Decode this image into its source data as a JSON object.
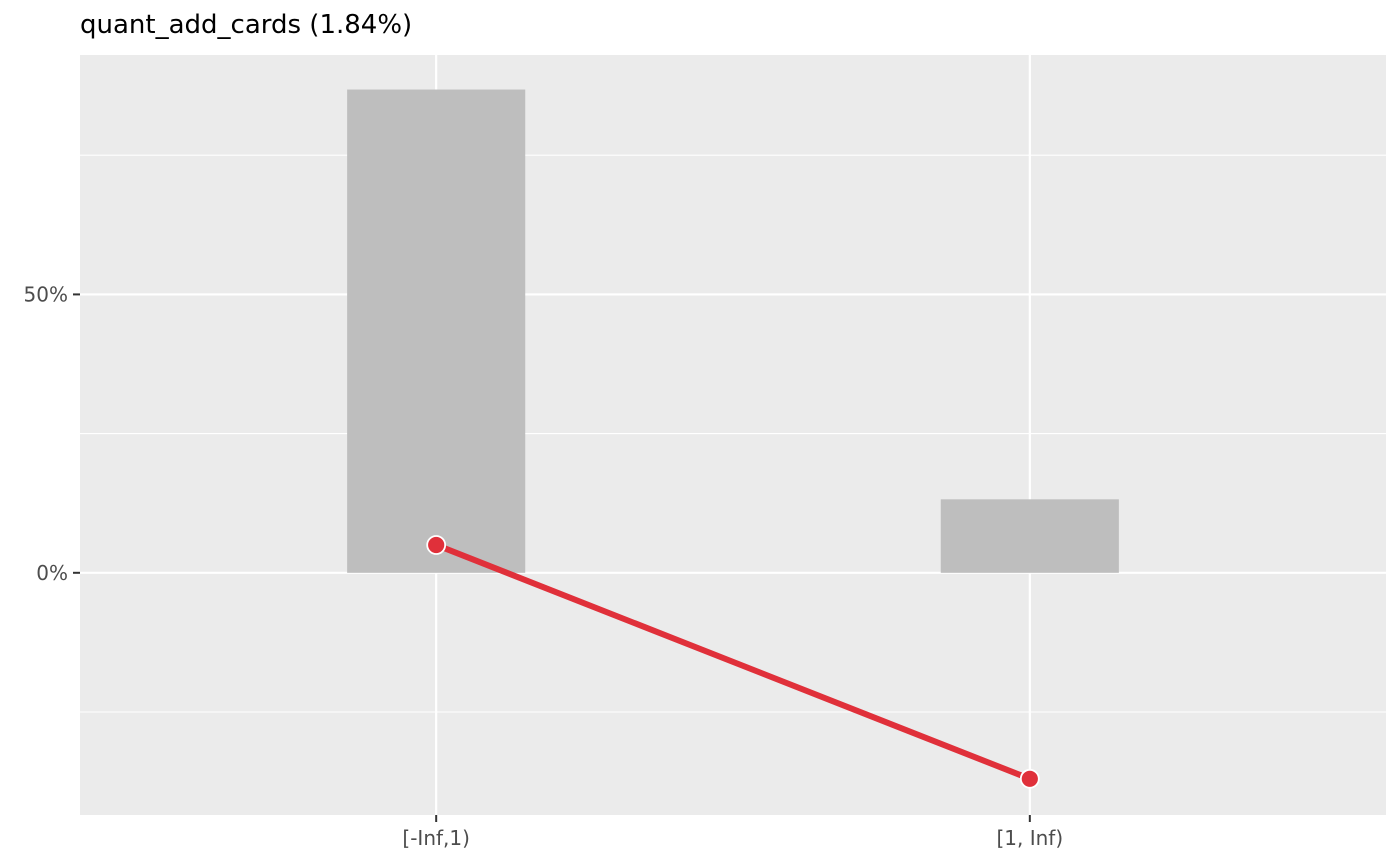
{
  "chart_data": {
    "type": "bar",
    "title": "quant_add_cards (1.84%)",
    "categories": [
      "[-Inf,1)",
      "[1, Inf)"
    ],
    "series": [
      {
        "type": "bar",
        "values": [
          86.8,
          13.2
        ]
      },
      {
        "type": "line",
        "values": [
          5.0,
          -37.0
        ]
      }
    ],
    "y_tick_labels": [
      "0%",
      "50%"
    ],
    "y_ticks": [
      0,
      50
    ],
    "ylim": [
      -43.5,
      93.0
    ],
    "xlabel": "",
    "ylabel": "",
    "grid": true,
    "colors": {
      "panel_background": "#ebebeb",
      "grid_line": "#ffffff",
      "bar_fill": "#bebebe",
      "line": "#e0303a",
      "point_fill": "#e0303a",
      "point_stroke": "#ffffff"
    }
  }
}
